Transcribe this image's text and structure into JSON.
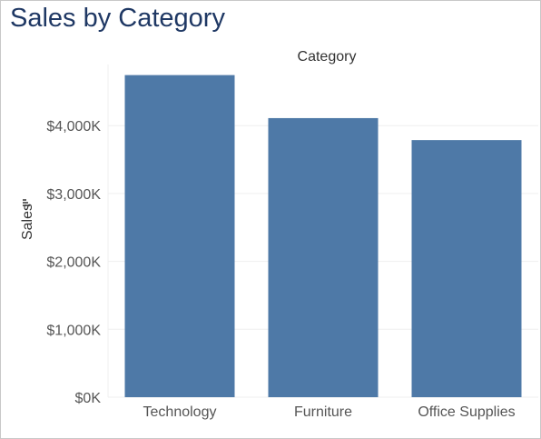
{
  "chart_data": {
    "type": "bar",
    "title": "Sales by Category",
    "column_header": "Category",
    "xlabel": "",
    "ylabel": "Sales",
    "categories": [
      "Technology",
      "Furniture",
      "Office Supplies"
    ],
    "values": [
      4744557,
      4110875,
      3787070
    ],
    "ylim": [
      0,
      4900000
    ],
    "yticks": [
      0,
      1000000,
      2000000,
      3000000,
      4000000
    ],
    "ytick_labels": [
      "$0K",
      "$1,000K",
      "$2,000K",
      "$3,000K",
      "$4,000K"
    ],
    "sort_icon": "sort-descending-icon",
    "bar_color": "#4e79a7",
    "grid": true,
    "legend": "none"
  }
}
